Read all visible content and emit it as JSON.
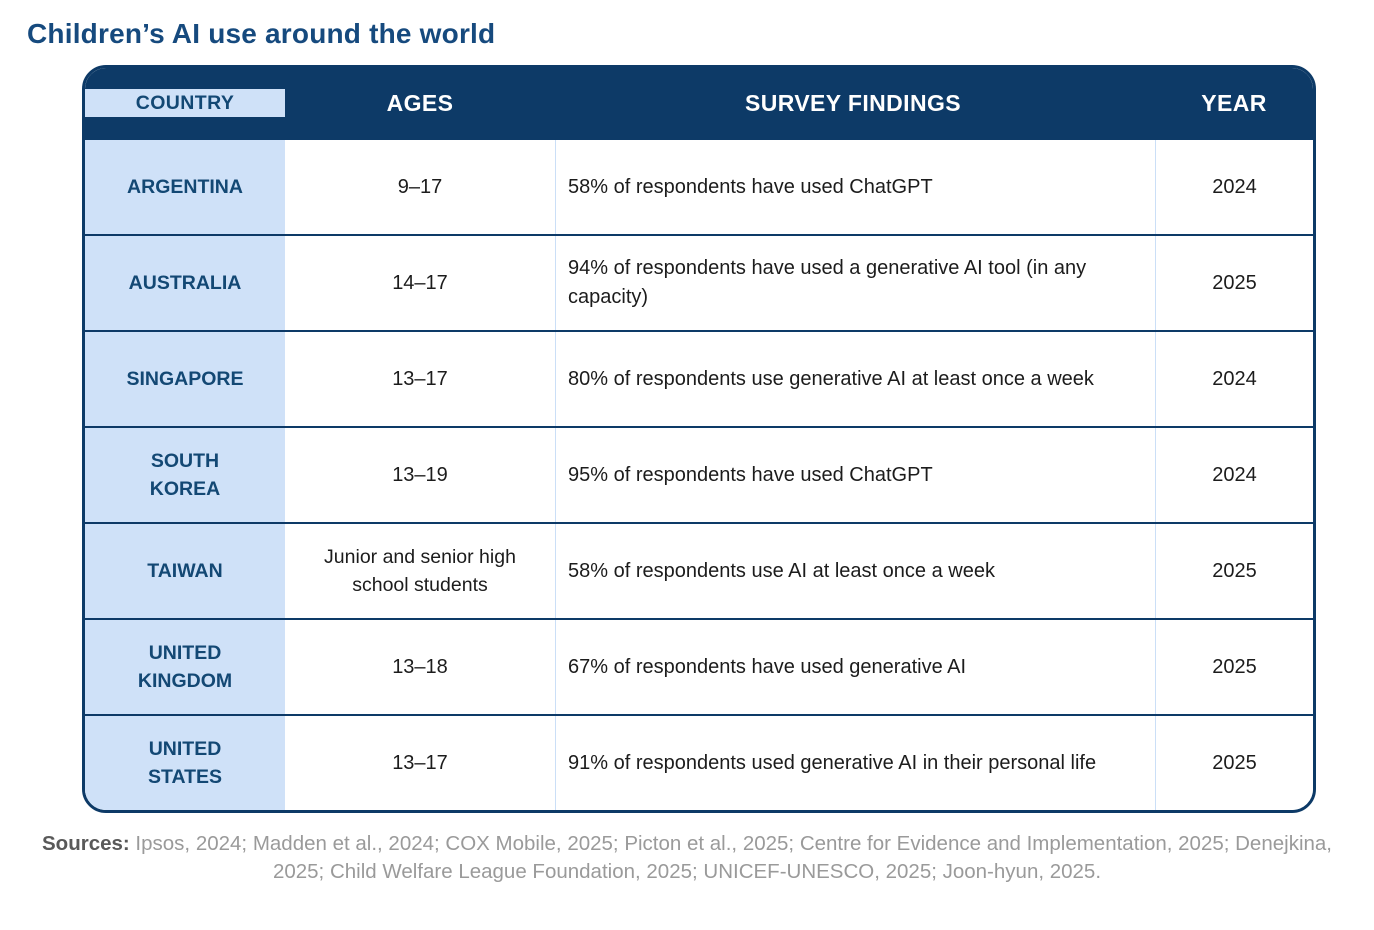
{
  "title": "Children’s AI use around the world",
  "table": {
    "headers": [
      "COUNTRY",
      "AGES",
      "SURVEY FINDINGS",
      "YEAR"
    ],
    "rows": [
      {
        "country": "ARGENTINA",
        "ages": "9–17",
        "finding": "58% of respondents have used ChatGPT",
        "year": "2024"
      },
      {
        "country": "AUSTRALIA",
        "ages": "14–17",
        "finding": "94% of respondents have used a generative AI tool (in any capacity)",
        "year": "2025"
      },
      {
        "country": "SINGAPORE",
        "ages": "13–17",
        "finding": "80% of respondents use generative AI at least once a week",
        "year": "2024"
      },
      {
        "country": "SOUTH KOREA",
        "ages": "13–19",
        "finding": "95% of respondents have used ChatGPT",
        "year": "2024"
      },
      {
        "country": "TAIWAN",
        "ages": "Junior and senior high school students",
        "finding": "58% of respondents use AI at least once a week",
        "year": "2025"
      },
      {
        "country": "UNITED KINGDOM",
        "ages": "13–18",
        "finding": "67% of respondents have used generative AI",
        "year": "2025"
      },
      {
        "country": "UNITED STATES",
        "ages": "13–17",
        "finding": "91% of respondents used generative AI in their personal life",
        "year": "2025"
      }
    ]
  },
  "footer": {
    "label": "Sources:",
    "text": " Ipsos, 2024; Madden et al., 2024; COX Mobile, 2025; Picton et al., 2025; Centre for Evidence and Implementation, 2025; Denejkina, 2025; Child Welfare League Foundation, 2025; UNICEF-UNESCO, 2025; Joon-hyun, 2025."
  },
  "colors": {
    "header_bg": "#0d3a67",
    "country_bg": "#cfe1f8",
    "accent_text": "#164a7e",
    "cell_divider": "#cbdff7"
  }
}
